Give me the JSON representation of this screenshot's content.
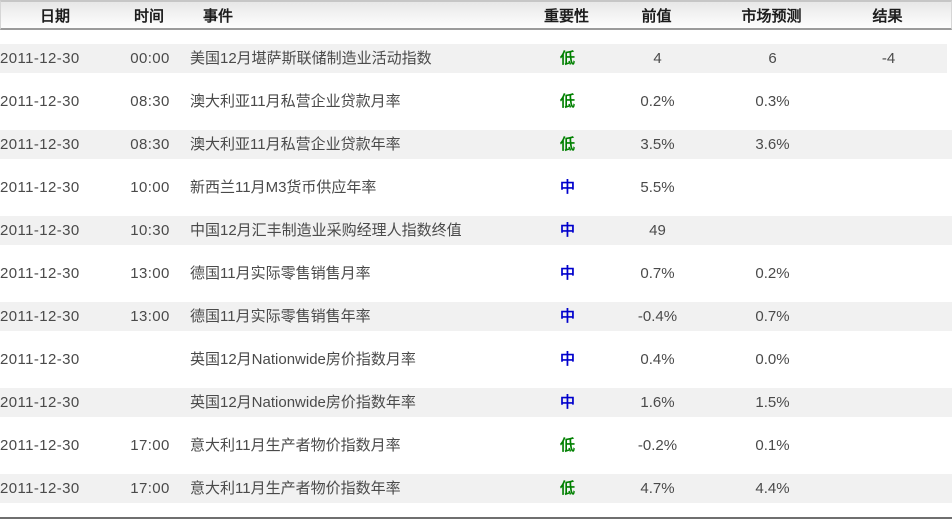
{
  "table": {
    "columns": [
      {
        "key": "date",
        "label": "日期"
      },
      {
        "key": "time",
        "label": "时间"
      },
      {
        "key": "event",
        "label": "事件"
      },
      {
        "key": "importance",
        "label": "重要性"
      },
      {
        "key": "previous",
        "label": "前值"
      },
      {
        "key": "forecast",
        "label": "市场预测"
      },
      {
        "key": "result",
        "label": "结果"
      }
    ],
    "importance_colors": {
      "低": "#008000",
      "中": "#0000cc"
    },
    "stripe_color": "#f1f1f1",
    "rows": [
      {
        "date": "2011-12-30",
        "time": "00:00",
        "event": "美国12月堪萨斯联储制造业活动指数",
        "importance": "低",
        "previous": "4",
        "forecast": "6",
        "result": "-4"
      },
      {
        "date": "2011-12-30",
        "time": "08:30",
        "event": "澳大利亚11月私营企业贷款月率",
        "importance": "低",
        "previous": "0.2%",
        "forecast": "0.3%",
        "result": ""
      },
      {
        "date": "2011-12-30",
        "time": "08:30",
        "event": "澳大利亚11月私营企业贷款年率",
        "importance": "低",
        "previous": "3.5%",
        "forecast": "3.6%",
        "result": ""
      },
      {
        "date": "2011-12-30",
        "time": "10:00",
        "event": "新西兰11月M3货币供应年率",
        "importance": "中",
        "previous": "5.5%",
        "forecast": "",
        "result": ""
      },
      {
        "date": "2011-12-30",
        "time": "10:30",
        "event": "中国12月汇丰制造业采购经理人指数终值",
        "importance": "中",
        "previous": "49",
        "forecast": "",
        "result": ""
      },
      {
        "date": "2011-12-30",
        "time": "13:00",
        "event": "德国11月实际零售销售月率",
        "importance": "中",
        "previous": "0.7%",
        "forecast": "0.2%",
        "result": ""
      },
      {
        "date": "2011-12-30",
        "time": "13:00",
        "event": "德国11月实际零售销售年率",
        "importance": "中",
        "previous": "-0.4%",
        "forecast": "0.7%",
        "result": ""
      },
      {
        "date": "2011-12-30",
        "time": "",
        "event": "英国12月Nationwide房价指数月率",
        "importance": "中",
        "previous": "0.4%",
        "forecast": "0.0%",
        "result": ""
      },
      {
        "date": "2011-12-30",
        "time": "",
        "event": "英国12月Nationwide房价指数年率",
        "importance": "中",
        "previous": "1.6%",
        "forecast": "1.5%",
        "result": ""
      },
      {
        "date": "2011-12-30",
        "time": "17:00",
        "event": "意大利11月生产者物价指数月率",
        "importance": "低",
        "previous": "-0.2%",
        "forecast": "0.1%",
        "result": ""
      },
      {
        "date": "2011-12-30",
        "time": "17:00",
        "event": "意大利11月生产者物价指数年率",
        "importance": "低",
        "previous": "4.7%",
        "forecast": "4.4%",
        "result": ""
      }
    ]
  }
}
